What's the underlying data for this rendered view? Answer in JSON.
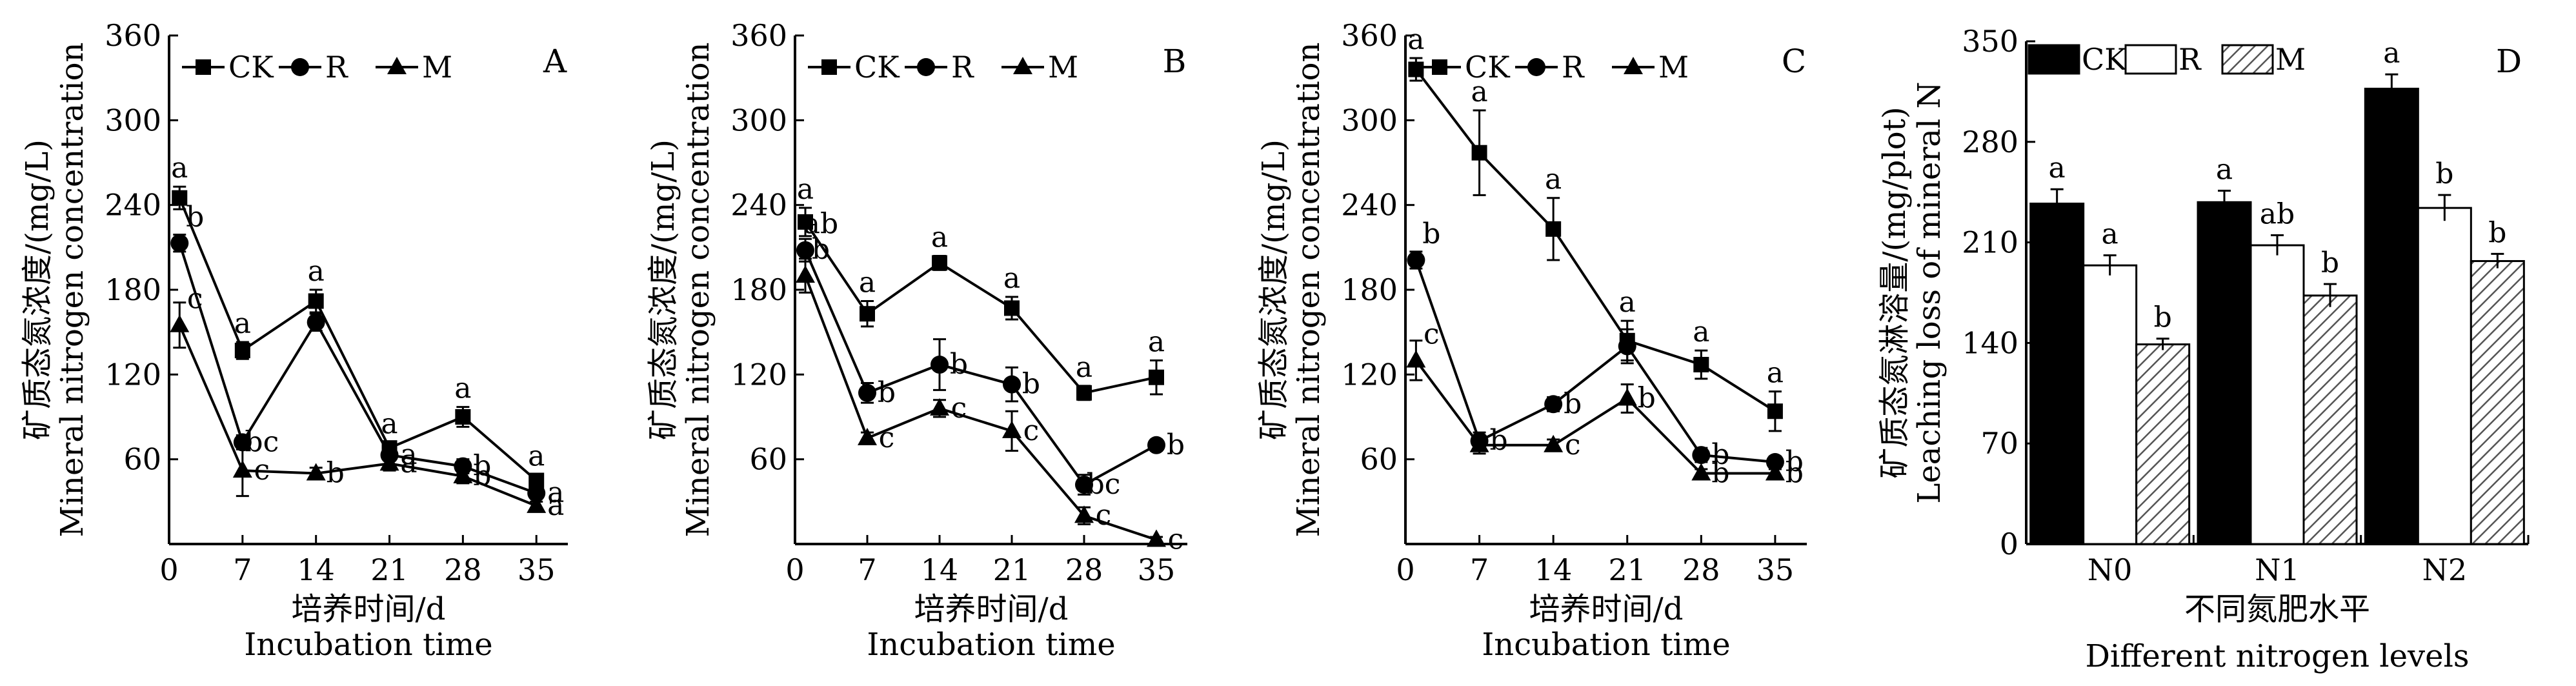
{
  "chart_data": [
    {
      "type": "line",
      "panel_label": "A",
      "x": [
        1,
        7,
        14,
        21,
        28,
        35
      ],
      "x_ticks": [
        "0",
        "7",
        "14",
        "21",
        "28",
        "35"
      ],
      "xlim": [
        0,
        38
      ],
      "ylim": [
        0,
        360
      ],
      "y_ticks": [
        "60",
        "120",
        "180",
        "240",
        "300",
        "360"
      ],
      "xlabel": [
        "培养时间/d",
        "Incubation time"
      ],
      "ylabel": [
        "矿质态氮浓度/(mg/L)",
        "Mineral nitrogen concentration"
      ],
      "legend": {
        "position": "top",
        "entries": [
          "CK",
          "R",
          "M"
        ]
      },
      "series": [
        {
          "name": "CK",
          "marker": "square",
          "values": [
            245,
            137,
            172,
            68,
            90,
            45
          ],
          "errors": [
            8,
            6,
            8,
            4,
            7,
            4
          ],
          "labels": [
            "a",
            "a",
            "a",
            "a",
            "a",
            "a"
          ]
        },
        {
          "name": "R",
          "marker": "circle",
          "values": [
            213,
            72,
            157,
            63,
            55,
            36
          ],
          "errors": [
            6,
            5,
            6,
            4,
            5,
            3
          ],
          "labels": [
            "b",
            "bc",
            "",
            "a",
            "b",
            "a"
          ]
        },
        {
          "name": "M",
          "marker": "triangle",
          "values": [
            155,
            52,
            50,
            57,
            48,
            27
          ],
          "errors": [
            16,
            18,
            4,
            5,
            5,
            3
          ],
          "labels": [
            "c",
            "c",
            "b",
            "a",
            "b",
            "a"
          ]
        }
      ]
    },
    {
      "type": "line",
      "panel_label": "B",
      "x": [
        1,
        7,
        14,
        21,
        28,
        35
      ],
      "x_ticks": [
        "0",
        "7",
        "14",
        "21",
        "28",
        "35"
      ],
      "xlim": [
        0,
        38
      ],
      "ylim": [
        0,
        360
      ],
      "y_ticks": [
        "60",
        "120",
        "180",
        "240",
        "300",
        "360"
      ],
      "xlabel": [
        "培养时间/d",
        "Incubation time"
      ],
      "ylabel": [
        "矿质态氮浓度/(mg/L)",
        "Mineral nitrogen concentration"
      ],
      "legend": {
        "position": "top",
        "entries": [
          "CK",
          "R",
          "M"
        ]
      },
      "series": [
        {
          "name": "CK",
          "marker": "square",
          "values": [
            228,
            163,
            199,
            167,
            107,
            118
          ],
          "errors": [
            10,
            9,
            5,
            8,
            5,
            12
          ],
          "labels": [
            "a",
            "a",
            "a",
            "a",
            "a",
            "a"
          ]
        },
        {
          "name": "R",
          "marker": "circle",
          "values": [
            208,
            107,
            127,
            113,
            42,
            70
          ],
          "errors": [
            8,
            7,
            18,
            12,
            7,
            4
          ],
          "labels": [
            "ab",
            "b",
            "b",
            "b",
            "bc",
            "b"
          ]
        },
        {
          "name": "M",
          "marker": "triangle",
          "values": [
            190,
            75,
            96,
            80,
            20,
            3
          ],
          "errors": [
            12,
            4,
            6,
            14,
            6,
            2
          ],
          "labels": [
            "b",
            "c",
            "c",
            "c",
            "c",
            "c"
          ]
        }
      ]
    },
    {
      "type": "line",
      "panel_label": "C",
      "x": [
        1,
        7,
        14,
        21,
        28,
        35
      ],
      "x_ticks": [
        "0",
        "7",
        "14",
        "21",
        "28",
        "35"
      ],
      "xlim": [
        0,
        38
      ],
      "ylim": [
        0,
        360
      ],
      "y_ticks": [
        "60",
        "120",
        "180",
        "240",
        "300",
        "360"
      ],
      "xlabel": [
        "培养时间/d",
        "Incubation time"
      ],
      "ylabel": [
        "矿质态氮浓度/(mg/L)",
        "Mineral nitrogen concentration"
      ],
      "legend": {
        "position": "top",
        "entries": [
          "CK",
          "R",
          "M"
        ]
      },
      "series": [
        {
          "name": "CK",
          "marker": "square",
          "values": [
            336,
            277,
            223,
            144,
            127,
            94
          ],
          "errors": [
            8,
            30,
            22,
            14,
            10,
            14
          ],
          "labels": [
            "a",
            "a",
            "a",
            "a",
            "a",
            "a"
          ]
        },
        {
          "name": "R",
          "marker": "circle",
          "values": [
            201,
            73,
            99,
            140,
            63,
            58
          ],
          "errors": [
            6,
            6,
            5,
            12,
            5,
            4
          ],
          "labels": [
            "b",
            "b",
            "b",
            "",
            "b",
            "b"
          ]
        },
        {
          "name": "M",
          "marker": "triangle",
          "values": [
            130,
            70,
            70,
            103,
            50,
            50
          ],
          "errors": [
            14,
            6,
            4,
            10,
            3,
            3
          ],
          "labels": [
            "c",
            "",
            "c",
            "b",
            "b",
            "b"
          ]
        }
      ]
    },
    {
      "type": "bar",
      "panel_label": "D",
      "categories": [
        "N0",
        "N1",
        "N2"
      ],
      "ylim": [
        0,
        350
      ],
      "y_ticks": [
        "0",
        "70",
        "140",
        "210",
        "280",
        "350"
      ],
      "xlabel": [
        "不同氮肥水平",
        "Different nitrogen levels"
      ],
      "ylabel": [
        "矿质态氮淋溶量/(mg/plot)",
        "Leaching loss of mineral N"
      ],
      "legend": {
        "position": "top",
        "entries": [
          "CK",
          "R",
          "M"
        ]
      },
      "series": [
        {
          "name": "CK",
          "fill": "solid-black",
          "values": [
            237,
            238,
            317
          ],
          "errors": [
            10,
            8,
            10
          ],
          "labels": [
            "a",
            "a",
            "a"
          ]
        },
        {
          "name": "R",
          "fill": "white",
          "values": [
            194,
            208,
            234
          ],
          "errors": [
            7,
            7,
            9
          ],
          "labels": [
            "a",
            "ab",
            "b"
          ]
        },
        {
          "name": "M",
          "fill": "hatched",
          "values": [
            139,
            173,
            197
          ],
          "errors": [
            4,
            8,
            5
          ],
          "labels": [
            "b",
            "b",
            "b"
          ]
        }
      ]
    }
  ]
}
